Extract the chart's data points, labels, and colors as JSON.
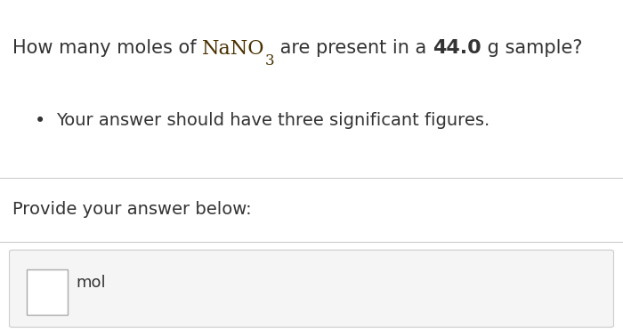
{
  "background_color": "#ffffff",
  "question_line1_prefix": "How many moles of ",
  "question_chemical": "NaNO",
  "question_subscript": "3",
  "question_line1_suffix": " are present in a ",
  "question_bold_value": "44.0",
  "question_line1_end": " g sample?",
  "bullet_text": "Your answer should have three significant figures.",
  "provide_text": "Provide your answer below:",
  "unit_text": "mol",
  "separator_color": "#cccccc",
  "text_color": "#333333",
  "chemical_color": "#4a3000",
  "box_border_color": "#aaaaaa",
  "answer_box_bg": "#f8f8f8",
  "main_font_size": 15,
  "bullet_font_size": 14,
  "provide_font_size": 14,
  "unit_font_size": 13
}
